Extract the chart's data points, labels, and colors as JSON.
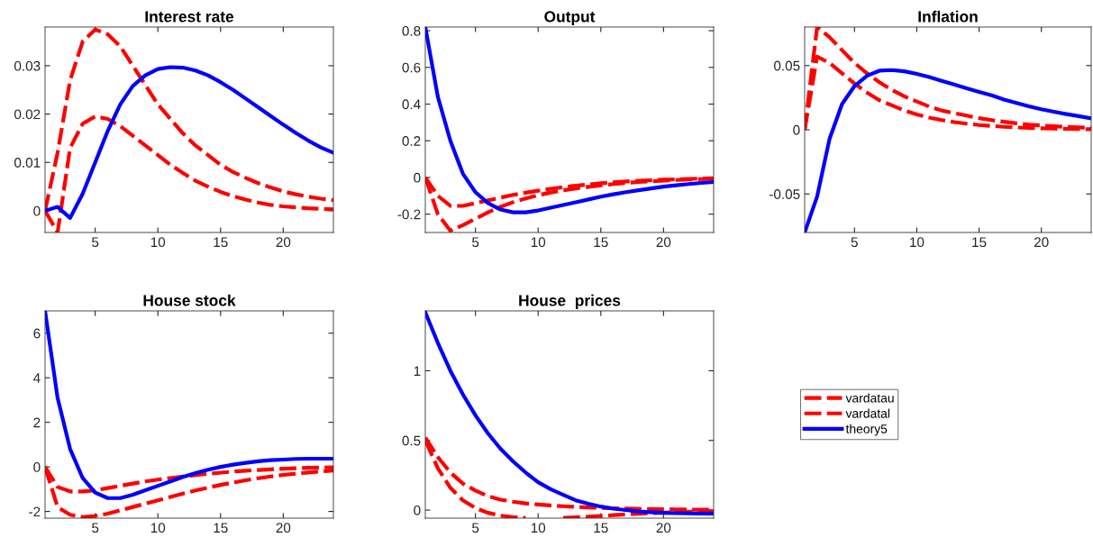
{
  "chart_data": [
    {
      "type": "line",
      "title": "Interest rate",
      "x": [
        1,
        2,
        3,
        4,
        5,
        6,
        7,
        8,
        9,
        10,
        11,
        12,
        13,
        14,
        15,
        16,
        17,
        18,
        19,
        20,
        21,
        22,
        23,
        24
      ],
      "xlim": [
        1,
        24
      ],
      "xticks": [
        5,
        10,
        15,
        20
      ],
      "ylim": [
        -0.0045,
        0.038
      ],
      "yticks": [
        0,
        0.01,
        0.02,
        0.03
      ],
      "grid": false,
      "legend": false,
      "series": [
        {
          "color": "#ff0000",
          "line_style": "dashed",
          "values": [
            0,
            0.012,
            0.027,
            0.035,
            0.0375,
            0.0365,
            0.034,
            0.03,
            0.026,
            0.022,
            0.019,
            0.016,
            0.0135,
            0.0115,
            0.0095,
            0.008,
            0.0068,
            0.0057,
            0.0048,
            0.004,
            0.0034,
            0.0029,
            0.0025,
            0.0022
          ]
        },
        {
          "color": "#ff0000",
          "line_style": "dashed",
          "values": [
            0,
            -0.0045,
            0.013,
            0.018,
            0.0195,
            0.019,
            0.0175,
            0.0155,
            0.0135,
            0.0115,
            0.0095,
            0.0078,
            0.0062,
            0.005,
            0.0039,
            0.003,
            0.0023,
            0.0017,
            0.0012,
            0.0009,
            0.0007,
            0.0005,
            0.0004,
            0.0003
          ]
        },
        {
          "color": "#0000ff",
          "line_style": "solid",
          "values": [
            0,
            0.0008,
            -0.0015,
            0.0035,
            0.01,
            0.0165,
            0.022,
            0.0258,
            0.028,
            0.0293,
            0.0297,
            0.0296,
            0.029,
            0.028,
            0.0266,
            0.025,
            0.0232,
            0.0214,
            0.0196,
            0.0178,
            0.0161,
            0.0145,
            0.0131,
            0.012
          ]
        }
      ]
    },
    {
      "type": "line",
      "title": "Output",
      "x": [
        1,
        2,
        3,
        4,
        5,
        6,
        7,
        8,
        9,
        10,
        11,
        12,
        13,
        14,
        15,
        16,
        17,
        18,
        19,
        20,
        21,
        22,
        23,
        24
      ],
      "xlim": [
        1,
        24
      ],
      "xticks": [
        5,
        10,
        15,
        20
      ],
      "ylim": [
        -0.3,
        0.82
      ],
      "yticks": [
        {
          "value": -0.2,
          "label": "-0.2"
        },
        0,
        0.2,
        0.4,
        0.6,
        0.8
      ],
      "grid": false,
      "legend": false,
      "series": [
        {
          "color": "#ff0000",
          "line_style": "dashed",
          "values": [
            0,
            -0.1,
            -0.155,
            -0.155,
            -0.14,
            -0.125,
            -0.11,
            -0.095,
            -0.083,
            -0.072,
            -0.062,
            -0.053,
            -0.045,
            -0.038,
            -0.032,
            -0.027,
            -0.022,
            -0.018,
            -0.015,
            -0.012,
            -0.01,
            -0.008,
            -0.006,
            -0.005
          ]
        },
        {
          "color": "#ff0000",
          "line_style": "dashed",
          "values": [
            0,
            -0.2,
            -0.29,
            -0.26,
            -0.225,
            -0.19,
            -0.16,
            -0.135,
            -0.115,
            -0.097,
            -0.082,
            -0.07,
            -0.06,
            -0.051,
            -0.043,
            -0.036,
            -0.03,
            -0.025,
            -0.021,
            -0.017,
            -0.014,
            -0.011,
            -0.009,
            -0.007
          ]
        },
        {
          "color": "#0000ff",
          "line_style": "solid",
          "values": [
            0.82,
            0.44,
            0.2,
            0.02,
            -0.08,
            -0.14,
            -0.175,
            -0.19,
            -0.19,
            -0.18,
            -0.165,
            -0.15,
            -0.135,
            -0.12,
            -0.105,
            -0.092,
            -0.08,
            -0.07,
            -0.06,
            -0.05,
            -0.043,
            -0.036,
            -0.03,
            -0.025
          ]
        }
      ]
    },
    {
      "type": "line",
      "title": "Inflation",
      "x": [
        1,
        2,
        3,
        4,
        5,
        6,
        7,
        8,
        9,
        10,
        11,
        12,
        13,
        14,
        15,
        16,
        17,
        18,
        19,
        20,
        21,
        22,
        23,
        24
      ],
      "xlim": [
        1,
        24
      ],
      "xticks": [
        5,
        10,
        15,
        20
      ],
      "ylim": [
        -0.08,
        0.08
      ],
      "yticks": [
        {
          "value": -0.05,
          "label": "-0.05"
        },
        0,
        0.05
      ],
      "grid": false,
      "legend": false,
      "series": [
        {
          "color": "#ff0000",
          "line_style": "dashed",
          "values": [
            0,
            0.08,
            0.072,
            0.062,
            0.052,
            0.044,
            0.037,
            0.031,
            0.026,
            0.022,
            0.018,
            0.015,
            0.013,
            0.011,
            0.009,
            0.0075,
            0.0062,
            0.005,
            0.004,
            0.0033,
            0.0027,
            0.0022,
            0.0018,
            0.0015
          ]
        },
        {
          "color": "#ff0000",
          "line_style": "dashed",
          "values": [
            0,
            0.057,
            0.052,
            0.044,
            0.036,
            0.029,
            0.023,
            0.019,
            0.015,
            0.012,
            0.0095,
            0.0075,
            0.006,
            0.0047,
            0.0037,
            0.003,
            0.0023,
            0.0018,
            0.0014,
            0.0011,
            0.0009,
            0.0007,
            0.0005,
            0.0004
          ]
        },
        {
          "color": "#0000ff",
          "line_style": "solid",
          "values": [
            -0.08,
            -0.052,
            -0.007,
            0.02,
            0.034,
            0.042,
            0.046,
            0.0465,
            0.0455,
            0.0435,
            0.041,
            0.038,
            0.0352,
            0.0323,
            0.0295,
            0.0268,
            0.0235,
            0.0208,
            0.0183,
            0.016,
            0.014,
            0.0122,
            0.0106,
            0.0088
          ]
        }
      ]
    },
    {
      "type": "line",
      "title": "House stock",
      "x": [
        1,
        2,
        3,
        4,
        5,
        6,
        7,
        8,
        9,
        10,
        11,
        12,
        13,
        14,
        15,
        16,
        17,
        18,
        19,
        20,
        21,
        22,
        23,
        24
      ],
      "xlim": [
        1,
        24
      ],
      "xticks": [
        5,
        10,
        15,
        20
      ],
      "ylim": [
        -2.3,
        7
      ],
      "yticks": [
        {
          "value": -2,
          "label": "-2"
        },
        0,
        2,
        4,
        6
      ],
      "grid": false,
      "legend": false,
      "series": [
        {
          "color": "#ff0000",
          "line_style": "dashed",
          "values": [
            0,
            -0.9,
            -1.1,
            -1.1,
            -1.05,
            -0.95,
            -0.85,
            -0.75,
            -0.65,
            -0.57,
            -0.5,
            -0.43,
            -0.37,
            -0.31,
            -0.26,
            -0.21,
            -0.17,
            -0.14,
            -0.11,
            -0.08,
            -0.06,
            -0.04,
            -0.03,
            -0.02
          ]
        },
        {
          "color": "#ff0000",
          "line_style": "dashed",
          "values": [
            0,
            -1.8,
            -2.15,
            -2.25,
            -2.2,
            -2.1,
            -1.95,
            -1.8,
            -1.65,
            -1.5,
            -1.35,
            -1.2,
            -1.06,
            -0.93,
            -0.81,
            -0.7,
            -0.6,
            -0.51,
            -0.43,
            -0.36,
            -0.3,
            -0.25,
            -0.2,
            -0.16
          ]
        },
        {
          "color": "#0000ff",
          "line_style": "solid",
          "values": [
            7,
            3.1,
            0.8,
            -0.5,
            -1.15,
            -1.4,
            -1.4,
            -1.25,
            -1.05,
            -0.85,
            -0.65,
            -0.45,
            -0.28,
            -0.13,
            0,
            0.1,
            0.18,
            0.25,
            0.3,
            0.33,
            0.36,
            0.37,
            0.37,
            0.37
          ]
        }
      ]
    },
    {
      "type": "line",
      "title": "House  prices",
      "x": [
        1,
        2,
        3,
        4,
        5,
        6,
        7,
        8,
        9,
        10,
        11,
        12,
        13,
        14,
        15,
        16,
        17,
        18,
        19,
        20,
        21,
        22,
        23,
        24
      ],
      "xlim": [
        1,
        24
      ],
      "xticks": [
        5,
        10,
        15,
        20
      ],
      "ylim": [
        -0.058,
        1.43
      ],
      "yticks": [
        0,
        0.5,
        1
      ],
      "grid": false,
      "legend": "right",
      "series": [
        {
          "name": "vardatau",
          "color": "#ff0000",
          "line_style": "dashed",
          "values": [
            0.52,
            0.38,
            0.27,
            0.19,
            0.14,
            0.1,
            0.075,
            0.06,
            0.048,
            0.04,
            0.033,
            0.028,
            0.023,
            0.019,
            0.016,
            0.013,
            0.011,
            0.009,
            0.007,
            0.006,
            0.005,
            0.004,
            0.003,
            0.003
          ]
        },
        {
          "name": "vardatal",
          "color": "#ff0000",
          "line_style": "dashed",
          "values": [
            0.5,
            0.3,
            0.16,
            0.07,
            0.015,
            -0.02,
            -0.04,
            -0.05,
            -0.056,
            null,
            null,
            -0.056,
            -0.052,
            -0.047,
            -0.042,
            -0.036,
            -0.031,
            -0.026,
            -0.022,
            -0.018,
            -0.015,
            -0.012,
            -0.01,
            -0.008
          ]
        },
        {
          "name": "theory5",
          "color": "#0000ff",
          "line_style": "solid",
          "values": [
            1.42,
            1.2,
            1.0,
            0.83,
            0.68,
            0.55,
            0.44,
            0.35,
            0.27,
            0.2,
            0.15,
            0.11,
            0.07,
            0.045,
            0.025,
            0.01,
            0,
            -0.01,
            -0.015,
            -0.02,
            -0.022,
            -0.024,
            -0.025,
            -0.025
          ]
        }
      ]
    }
  ]
}
